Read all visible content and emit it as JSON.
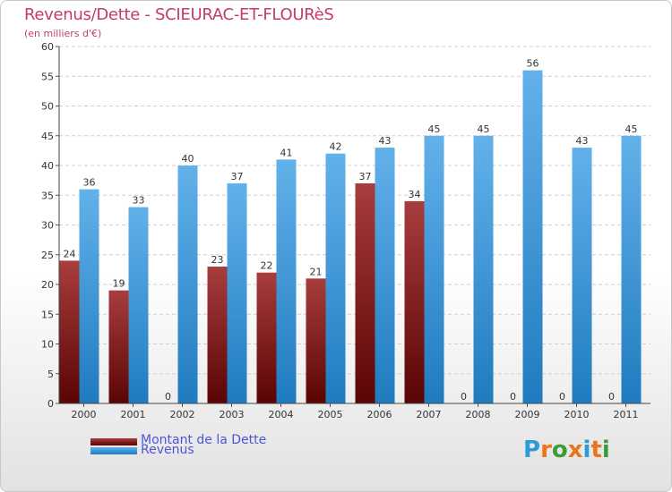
{
  "title": "Revenus/Dette - SCIEURAC-ET-FLOURèS",
  "subtitle": "(en milliers d'€)",
  "logo": {
    "text": "Proxiti",
    "colors": [
      "#2e9ad8",
      "#e8761d",
      "#3c9c3a",
      "#e8761d",
      "#2e9ad8",
      "#e8761d",
      "#3c9c3a"
    ]
  },
  "legend": {
    "dette_label": "Montant de la Dette",
    "revenus_label": "Revenus"
  },
  "colors": {
    "dette": "#6b0a0a",
    "dette_light": "#a83d3d",
    "revenus": "#1f7bbf",
    "revenus_light": "#63b1ea"
  },
  "chart_data": {
    "type": "bar",
    "title": "Revenus/Dette - SCIEURAC-ET-FLOURèS",
    "ylabel": "(en milliers d'€)",
    "xlabel": "",
    "categories": [
      "2000",
      "2001",
      "2002",
      "2003",
      "2004",
      "2005",
      "2006",
      "2007",
      "2008",
      "2009",
      "2010",
      "2011"
    ],
    "series": [
      {
        "name": "Montant de la Dette",
        "values": [
          24,
          19,
          0,
          23,
          22,
          21,
          37,
          34,
          0,
          0,
          0,
          0
        ]
      },
      {
        "name": "Revenus",
        "values": [
          36,
          33,
          40,
          37,
          41,
          42,
          43,
          45,
          45,
          56,
          43,
          45
        ]
      }
    ],
    "ylim": [
      0,
      60
    ],
    "yticks": [
      0,
      5,
      10,
      15,
      20,
      25,
      30,
      35,
      40,
      45,
      50,
      55,
      60
    ],
    "grid": true,
    "legend_position": "bottom-left"
  }
}
